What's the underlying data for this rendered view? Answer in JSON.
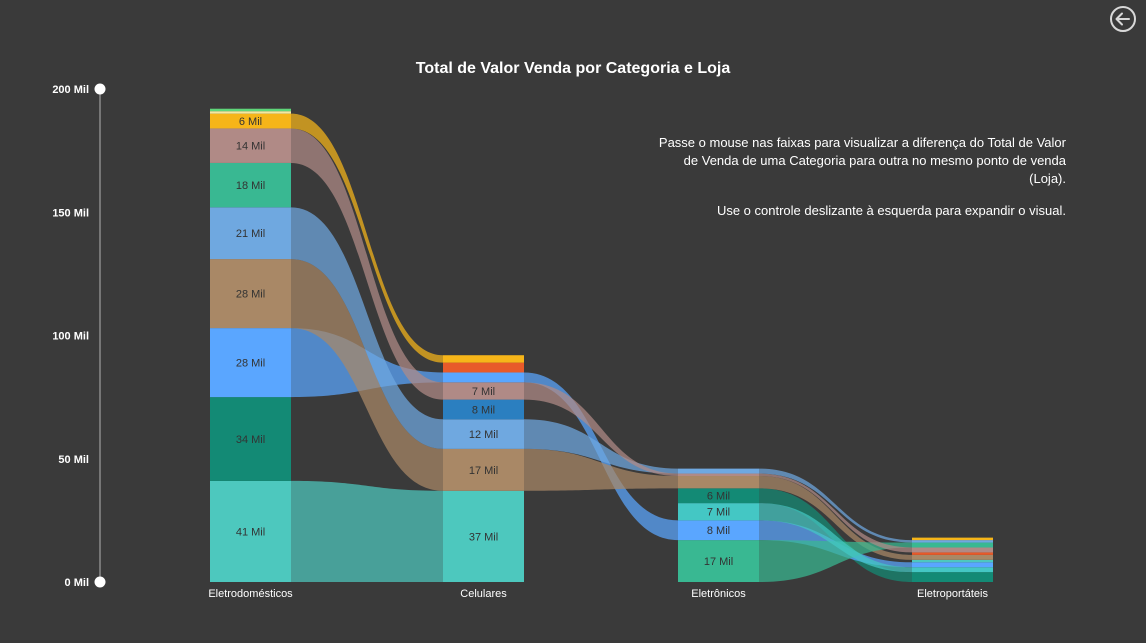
{
  "chart_data": {
    "type": "ribbon",
    "title": "Total de Valor Venda por Categoria e Loja",
    "categories": [
      "Eletrodomésticos",
      "Celulares",
      "Eletrônicos",
      "Eletroportáteis"
    ],
    "y_ticks": [
      "200 Mil",
      "150 Mil",
      "100 Mil",
      "50 Mil",
      "0 Mil"
    ],
    "ylim": [
      0,
      200
    ],
    "series": [
      {
        "color": "#4dc8be",
        "values": [
          41,
          37,
          0,
          1
        ]
      },
      {
        "color": "#138a75",
        "values": [
          34,
          0,
          6,
          4
        ]
      },
      {
        "color": "#5aa6ff",
        "values": [
          28,
          4,
          8,
          2
        ]
      },
      {
        "color": "#a98866",
        "values": [
          28,
          17,
          5,
          2
        ]
      },
      {
        "color": "#6fa8e0",
        "values": [
          21,
          12,
          2,
          1
        ]
      },
      {
        "color": "#39b892",
        "values": [
          18,
          0,
          17,
          2
        ]
      },
      {
        "color": "#b08a86",
        "values": [
          14,
          7,
          1,
          2
        ]
      },
      {
        "color": "#f6b519",
        "values": [
          6,
          3,
          0,
          1
        ]
      },
      {
        "color": "#e85a2a",
        "values": [
          0,
          4,
          0,
          1
        ]
      },
      {
        "color": "#2b7fc0",
        "values": [
          0,
          8,
          0,
          0
        ]
      },
      {
        "color": "#44c7c4",
        "values": [
          0,
          0,
          7,
          2
        ]
      },
      {
        "color": "#f2e8a0",
        "values": [
          1,
          0,
          0,
          0
        ]
      },
      {
        "color": "#5fd67a",
        "values": [
          1,
          0,
          0,
          0
        ]
      }
    ],
    "data_labels": [
      [
        "41 Mil",
        "34 Mil",
        "28 Mil",
        "28 Mil",
        "21 Mil",
        "18 Mil",
        "14 Mil",
        "6 Mil",
        "",
        "",
        "",
        "",
        ""
      ],
      [
        "37 Mil",
        "",
        "",
        "17 Mil",
        "12 Mil",
        "",
        "7 Mil",
        "",
        "",
        "8 Mil",
        "",
        "",
        ""
      ],
      [
        "",
        "6 Mil",
        "8 Mil",
        "",
        "",
        "17 Mil",
        "",
        "",
        "",
        "",
        "7 Mil",
        "",
        ""
      ],
      [
        "",
        "",
        "",
        "",
        "",
        "",
        "",
        "",
        "",
        "",
        "",
        "",
        ""
      ]
    ],
    "stack_order": [
      [
        0,
        1,
        2,
        3,
        4,
        5,
        6,
        7,
        11,
        12
      ],
      [
        0,
        3,
        4,
        9,
        6,
        2,
        8,
        7
      ],
      [
        5,
        2,
        10,
        1,
        3,
        6,
        4
      ],
      [
        1,
        10,
        2,
        0,
        3,
        8,
        6,
        5,
        4,
        7
      ]
    ],
    "slider": {
      "min": "0 Mil",
      "max": "200 Mil"
    }
  },
  "info_text": {
    "line1": "Passe o mouse nas faixas para visualizar a diferença do Total de Valor de Venda de uma Categoria para outra no mesmo ponto de venda (Loja).",
    "line2": "Use o controle deslizante à esquerda para expandir o visual."
  },
  "back_icon": "back-arrow-icon"
}
